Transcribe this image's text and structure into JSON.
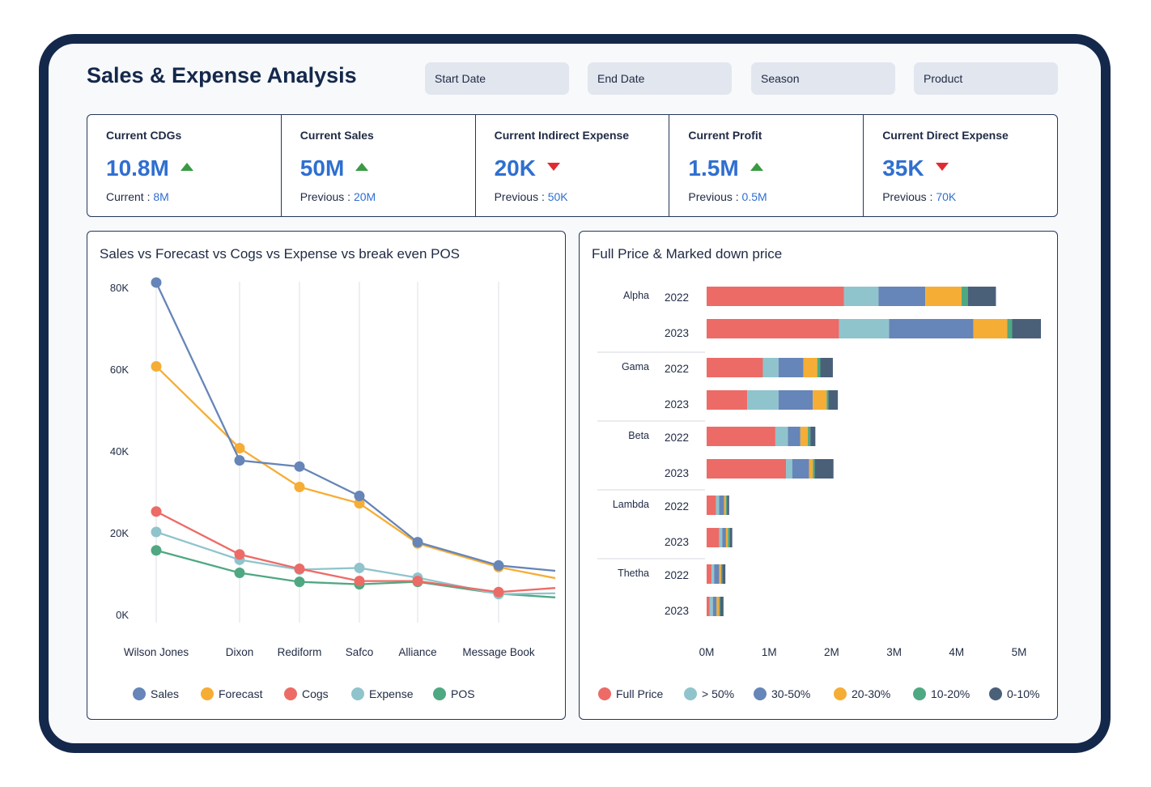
{
  "header": {
    "title": "Sales & Expense Analysis"
  },
  "filters": {
    "start_date": "Start Date",
    "end_date": "End Date",
    "season": "Season",
    "product": "Product"
  },
  "kpis": [
    {
      "title": "Current CDGs",
      "value": "10.8M",
      "trend": "up",
      "sub_label": "Current : ",
      "sub_value": "8M"
    },
    {
      "title": "Current Sales",
      "value": "50M",
      "trend": "up",
      "sub_label": "Previous : ",
      "sub_value": "20M"
    },
    {
      "title": "Current Indirect Expense",
      "value": "20K",
      "trend": "down",
      "sub_label": "Previous : ",
      "sub_value": "50K"
    },
    {
      "title": "Current Profit",
      "value": "1.5M",
      "trend": "up",
      "sub_label": "Previous : ",
      "sub_value": "0.5M"
    },
    {
      "title": "Current Direct Expense",
      "value": "35K",
      "trend": "down",
      "sub_label": "Previous : ",
      "sub_value": "70K"
    }
  ],
  "chart_data": [
    {
      "type": "line",
      "title": "Sales vs Forecast vs Cogs vs Expense vs break even POS",
      "categories": [
        "Wilson Jones",
        "Dixon",
        "Rediform",
        "Safco",
        "Alliance",
        "Message Book"
      ],
      "y_ticks": [
        "80K",
        "60K",
        "40K",
        "20K",
        "0K"
      ],
      "ylim": [
        0,
        80000
      ],
      "grid": "vertical",
      "legend": "bottom",
      "series": [
        {
          "name": "Sales",
          "color": "#6685b8",
          "values": [
            81000,
            37500,
            36000,
            28800,
            17500,
            11800
          ],
          "end_value": 10500
        },
        {
          "name": "Forecast",
          "color": "#f6ad35",
          "values": [
            60500,
            40500,
            31000,
            27000,
            17200,
            11400
          ],
          "end_value": 8700
        },
        {
          "name": "Cogs",
          "color": "#ec6b67",
          "values": [
            25000,
            14500,
            11000,
            8000,
            8000,
            5300
          ],
          "end_value": 6300
        },
        {
          "name": "Expense",
          "color": "#8fc4cc",
          "values": [
            20000,
            13200,
            10800,
            11200,
            8800,
            4800
          ],
          "end_value": 5000
        },
        {
          "name": "POS",
          "color": "#4fa882",
          "values": [
            15500,
            10000,
            7800,
            7200,
            7800,
            4900
          ],
          "end_value": 4000
        }
      ]
    },
    {
      "type": "bar",
      "orientation": "horizontal",
      "stacked": true,
      "title": "Full Price & Marked down price",
      "x_ticks": [
        "0M",
        "1M",
        "2M",
        "3M",
        "4M",
        "5M"
      ],
      "xlim": [
        0,
        5
      ],
      "legend": "bottom",
      "series": [
        {
          "name": "Full Price",
          "color": "#ec6b67"
        },
        {
          "name": "> 50%",
          "color": "#8fc4cc"
        },
        {
          "name": "30-50%",
          "color": "#6685b8"
        },
        {
          "name": "20-30%",
          "color": "#f6ad35"
        },
        {
          "name": "10-20%",
          "color": "#4fa882"
        },
        {
          "name": "0-10%",
          "color": "#4a6079"
        }
      ],
      "groups": [
        {
          "name": "Alpha",
          "bars": [
            {
              "year": "2022",
              "values": [
                2.2,
                0.55,
                0.75,
                0.58,
                0.1,
                0.45
              ]
            },
            {
              "year": "2023",
              "values": [
                2.12,
                0.8,
                1.35,
                0.54,
                0.08,
                0.46
              ]
            }
          ]
        },
        {
          "name": "Gama",
          "bars": [
            {
              "year": "2022",
              "values": [
                0.9,
                0.25,
                0.4,
                0.22,
                0.05,
                0.2
              ]
            },
            {
              "year": "2023",
              "values": [
                0.65,
                0.5,
                0.55,
                0.22,
                0.03,
                0.15
              ]
            }
          ]
        },
        {
          "name": "Beta",
          "bars": [
            {
              "year": "2022",
              "values": [
                1.1,
                0.2,
                0.2,
                0.12,
                0.04,
                0.08
              ]
            },
            {
              "year": "2023",
              "values": [
                1.27,
                0.1,
                0.27,
                0.06,
                0.03,
                0.3
              ]
            }
          ]
        },
        {
          "name": "Lambda",
          "bars": [
            {
              "year": "2022",
              "values": [
                0.15,
                0.05,
                0.08,
                0.03,
                0.02,
                0.03
              ]
            },
            {
              "year": "2023",
              "values": [
                0.2,
                0.05,
                0.06,
                0.03,
                0.03,
                0.04
              ]
            }
          ]
        },
        {
          "name": "Thetha",
          "bars": [
            {
              "year": "2022",
              "values": [
                0.08,
                0.04,
                0.08,
                0.03,
                0.02,
                0.05
              ]
            },
            {
              "year": "2023",
              "values": [
                0.05,
                0.05,
                0.06,
                0.04,
                0.02,
                0.05
              ]
            }
          ]
        }
      ]
    }
  ]
}
